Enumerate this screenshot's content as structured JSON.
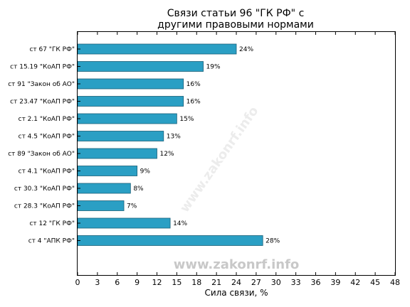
{
  "chart_data": {
    "type": "bar",
    "orientation": "horizontal",
    "title_line1": "Связи статьи 96 \"ГК РФ\" с",
    "title_line2": "другими правовыми нормами",
    "xlabel": "Сила связи, %",
    "xlim": [
      0,
      48
    ],
    "xticks": [
      0,
      3,
      6,
      9,
      12,
      15,
      18,
      21,
      24,
      27,
      30,
      33,
      36,
      39,
      42,
      45,
      48
    ],
    "categories": [
      "ст 67 \"ГК РФ\"",
      "ст 15.19 \"КоАП РФ\"",
      "ст 91 \"Закон об АО\"",
      "ст 23.47 \"КоАП РФ\"",
      "ст 2.1 \"КоАП РФ\"",
      "ст 4.5 \"КоАП РФ\"",
      "ст 89 \"Закон об АО\"",
      "ст 4.1 \"КоАП РФ\"",
      "ст 30.3 \"КоАП РФ\"",
      "ст 28.3 \"КоАП РФ\"",
      "ст 12 \"ГК РФ\"",
      "ст 4 \"АПК РФ\""
    ],
    "values": [
      24,
      19,
      16,
      16,
      15,
      13,
      12,
      9,
      8,
      7,
      14,
      28
    ],
    "data_labels": [
      "24%",
      "19%",
      "16%",
      "16%",
      "15%",
      "13%",
      "12%",
      "9%",
      "8%",
      "7%",
      "14%",
      "28%"
    ],
    "bar_color": "#2a9fc4",
    "grid": false
  },
  "watermark": "www.zakonrf.info",
  "watermark_diagonal": "www.zakonrf.info"
}
